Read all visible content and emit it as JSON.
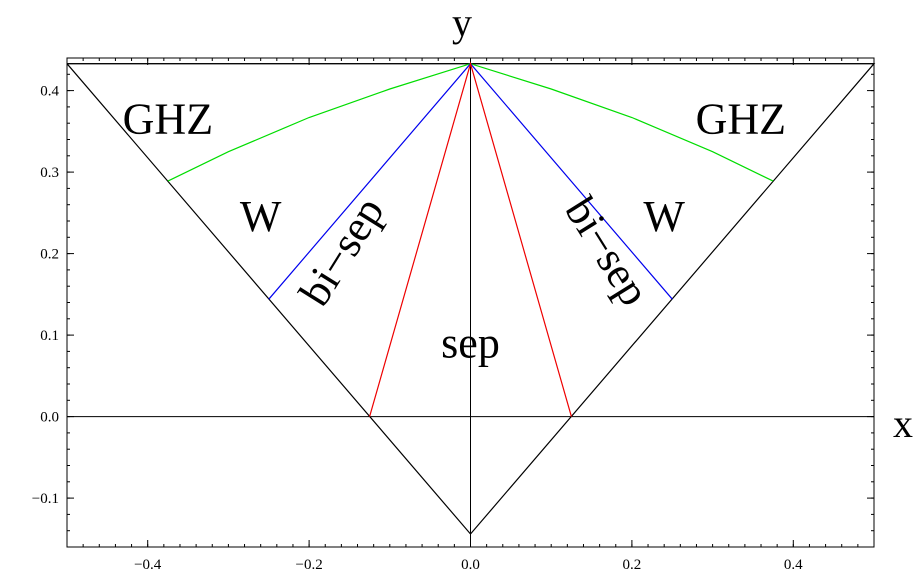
{
  "chart_data": {
    "type": "line",
    "title": "",
    "xlabel": "x",
    "ylabel": "y",
    "xlim": [
      -0.5,
      0.5
    ],
    "ylim": [
      -0.16,
      0.44
    ],
    "x_ticks": [
      -0.4,
      -0.2,
      0.0,
      0.2,
      0.4
    ],
    "x_tick_labels": [
      "−0.4",
      "−0.2",
      "0.0",
      "0.2",
      "0.4"
    ],
    "y_ticks": [
      -0.1,
      0.0,
      0.1,
      0.2,
      0.3,
      0.4
    ],
    "y_tick_labels": [
      "−0.1",
      "0.0",
      "0.1",
      "0.2",
      "0.3",
      "0.4"
    ],
    "axes_origin": [
      0,
      0
    ],
    "series": [
      {
        "color": "#000000",
        "x": [
          -0.5,
          0.5,
          0.0,
          -0.5
        ],
        "y": [
          0.433,
          0.433,
          -0.144,
          0.433
        ]
      },
      {
        "color": "#000000",
        "x": [
          -0.5,
          0.5
        ],
        "y": [
          0.433,
          0.433
        ]
      },
      {
        "color": "#00dd00",
        "x": [
          -0.375,
          -0.3,
          -0.2,
          -0.1,
          0.0,
          0.1,
          0.2,
          0.3,
          0.375
        ],
        "y": [
          0.289,
          0.325,
          0.367,
          0.402,
          0.433,
          0.402,
          0.367,
          0.325,
          0.289
        ]
      },
      {
        "color": "#0000ee",
        "x": [
          -0.25,
          0.0,
          0.25
        ],
        "y": [
          0.144,
          0.433,
          0.144
        ]
      },
      {
        "color": "#ee0000",
        "x": [
          -0.125,
          0.0,
          0.125
        ],
        "y": [
          0.0,
          0.433,
          0.0
        ]
      }
    ],
    "annotations": [
      {
        "text": "GHZ",
        "x": -0.375,
        "y": 0.36,
        "rotate": 0
      },
      {
        "text": "GHZ",
        "x": 0.335,
        "y": 0.36,
        "rotate": 0
      },
      {
        "text": "W",
        "x": -0.26,
        "y": 0.24,
        "rotate": 0
      },
      {
        "text": "W",
        "x": 0.24,
        "y": 0.24,
        "rotate": 0
      },
      {
        "text": "bi−sep",
        "x": -0.155,
        "y": 0.2,
        "rotate": -58
      },
      {
        "text": "bi−sep",
        "x": 0.165,
        "y": 0.2,
        "rotate": 58
      },
      {
        "text": "sep",
        "x": 0.0,
        "y": 0.085,
        "rotate": 0
      }
    ]
  }
}
